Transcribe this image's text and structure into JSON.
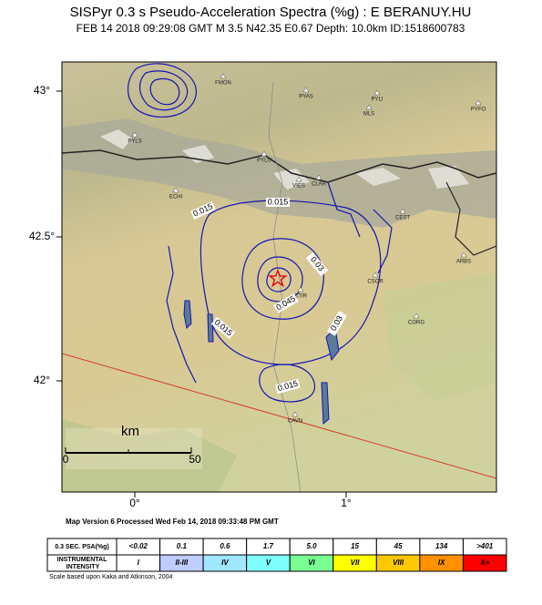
{
  "header": {
    "title": "SISPyr 0.3 s Pseudo-Acceleration Spectra (%g) : E BERANUY.HU",
    "subtitle": "FEB 14 2018 09:29:08  GMT   M 3.5    N42.35 E0.67    Depth: 10.0km    ID:1518600783"
  },
  "map": {
    "lat_labels": [
      "43°",
      "42.5°",
      "42°"
    ],
    "lon_labels": [
      "0°",
      "1°"
    ],
    "stations": [
      "FMON",
      "PYAS",
      "PYLI",
      "MLS",
      "PYFO",
      "PYLS",
      "PYLU",
      "VIES",
      "CLAR",
      "ECHI",
      "CEST",
      "ARBS",
      "CSOR",
      "CTIR",
      "CORG",
      "CAVN"
    ],
    "contour_labels": [
      "0.015",
      "0.015",
      "0.03",
      "0.045",
      "0.015",
      "0.03",
      "0.015"
    ],
    "scale": {
      "unit": "km",
      "ticks": [
        "0",
        "50"
      ]
    }
  },
  "footer": "Map Version 6 Processed Wed Feb 14, 2018 09:33:48 PM GMT",
  "legend": {
    "row_headers": [
      "0.3 SEC. PSA(%g)",
      "INSTRUMENTAL INTENSITY"
    ],
    "psa": [
      "<0.02",
      "0.1",
      "0.6",
      "1.7",
      "5.0",
      "15",
      "45",
      "134",
      ">401"
    ],
    "intensity": [
      "I",
      "II-III",
      "IV",
      "V",
      "VI",
      "VII",
      "VIII",
      "IX",
      "X+"
    ]
  },
  "credit": "Scale based upon Kaka and Atkinson, 2004"
}
